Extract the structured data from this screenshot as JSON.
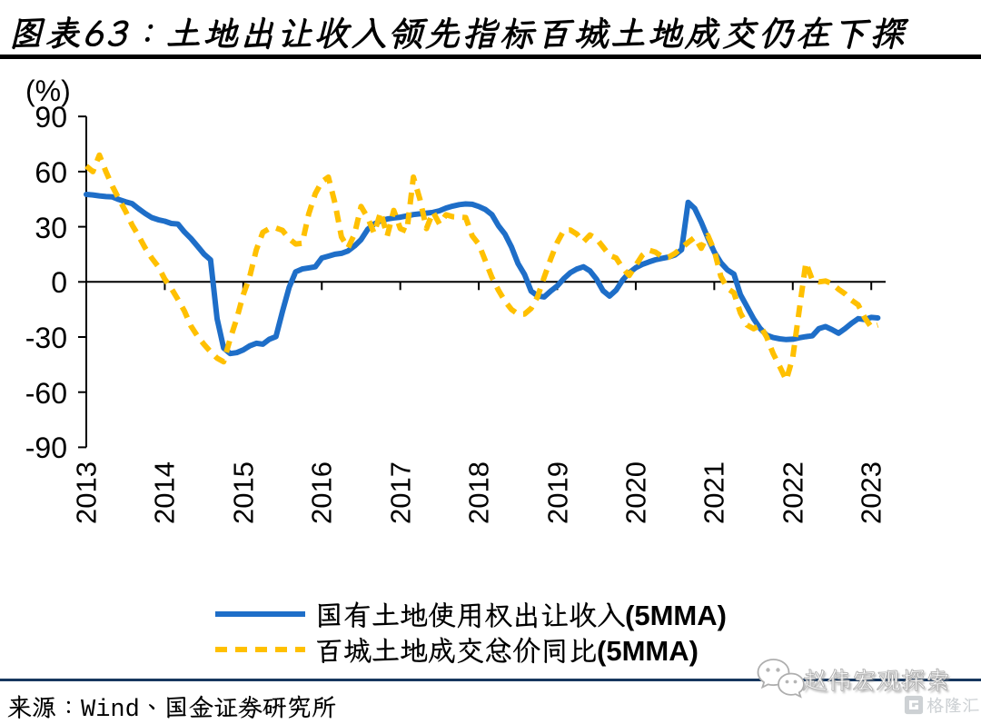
{
  "header": {
    "title": "图表63：土地出让收入领先指标百城土地成交仍在下探"
  },
  "chart_data": {
    "type": "line",
    "title": "土地出让收入领先指标百城土地成交仍在下探",
    "unit_label": "(%)",
    "x_start": "2013-01",
    "x_end": "2023-02",
    "x_frequency": "monthly",
    "xlabel": "",
    "ylabel": "(%)",
    "ylim": [
      -90,
      90
    ],
    "yticks": [
      90,
      60,
      30,
      0,
      -30,
      -60,
      -90
    ],
    "xticks": [
      "2013",
      "2014",
      "2015",
      "2016",
      "2017",
      "2018",
      "2019",
      "2020",
      "2021",
      "2022",
      "2023"
    ],
    "grid": false,
    "legend_position": "bottom-center",
    "series": [
      {
        "name": "国有土地使用权出让收入(5MMA)",
        "color": "#1E6EC8",
        "style": "solid",
        "values": [
          47.6,
          47.3,
          46.8,
          46.4,
          46.2,
          44.8,
          43.6,
          42.6,
          39.8,
          37.2,
          35.0,
          33.8,
          33.0,
          31.8,
          31.5,
          27.2,
          23.6,
          19.4,
          15.1,
          12.0,
          -20.0,
          -36.0,
          -39.0,
          -38.5,
          -37.0,
          -34.8,
          -33.4,
          -33.9,
          -31.2,
          -29.8,
          -16.0,
          -3.0,
          5.5,
          7.0,
          7.6,
          8.2,
          13.0,
          14.0,
          15.0,
          15.5,
          16.8,
          19.5,
          23.0,
          28.5,
          31.5,
          33.2,
          34.2,
          34.8,
          35.2,
          35.9,
          36.6,
          37.0,
          37.4,
          37.8,
          38.7,
          40.2,
          41.2,
          42.0,
          42.4,
          42.2,
          41.0,
          39.4,
          36.6,
          30.6,
          26.0,
          19.0,
          10.0,
          4.0,
          -5.0,
          -7.6,
          -8.2,
          -5.0,
          -2.2,
          1.8,
          5.0,
          7.0,
          8.2,
          6.0,
          1.5,
          -4.8,
          -7.7,
          -4.5,
          1.0,
          5.0,
          7.7,
          9.5,
          10.8,
          12.0,
          12.8,
          13.5,
          14.7,
          17.5,
          43.3,
          40.0,
          32.5,
          24.0,
          16.2,
          10.5,
          6.5,
          4.2,
          -7.0,
          -13.5,
          -20.0,
          -25.3,
          -29.0,
          -30.3,
          -31.0,
          -31.4,
          -31.2,
          -30.4,
          -29.8,
          -29.3,
          -25.4,
          -24.3,
          -26.0,
          -27.9,
          -25.4,
          -22.5,
          -20.0,
          -20.5,
          -19.3,
          -19.6
        ]
      },
      {
        "name": "百城土地成交总价同比(5MMA)",
        "color": "#FFC000",
        "style": "dashed",
        "values": [
          63,
          60,
          69,
          60,
          52,
          45,
          38.5,
          31,
          25,
          18.5,
          13,
          8.3,
          1.5,
          -3.5,
          -9.5,
          -15.8,
          -24,
          -29.5,
          -34,
          -38,
          -41.5,
          -43.5,
          -31,
          -20,
          -7,
          3,
          17.5,
          27,
          29,
          29.3,
          28,
          23.5,
          20.6,
          21,
          37,
          48,
          54.5,
          57,
          43,
          24.5,
          18.5,
          26,
          41,
          35,
          26.5,
          38,
          25,
          38.9,
          29,
          27.5,
          57,
          45,
          29,
          38,
          31.5,
          36.5,
          35.5,
          35.3,
          35,
          25,
          20.5,
          11.5,
          2.5,
          -4.5,
          -10.5,
          -15,
          -17.5,
          -17.5,
          -14.5,
          -8,
          2.5,
          12.5,
          21.5,
          28,
          28.2,
          26,
          21.8,
          25.5,
          23.5,
          19,
          14.5,
          13,
          7.5,
          3.5,
          9,
          14.5,
          17.3,
          16.2,
          13.8,
          13.4,
          15.5,
          18.5,
          21.5,
          24.2,
          18.3,
          25.3,
          17,
          3,
          -3.5,
          -6,
          -17,
          -23.5,
          -25.5,
          -23.7,
          -30,
          -39,
          -46,
          -53.5,
          -41,
          -15,
          10.5,
          1,
          0,
          0.5,
          -1,
          -4,
          -6.5,
          -10,
          -12.5,
          -19.5,
          -24.6,
          -23.5
        ]
      }
    ]
  },
  "legend": {
    "items": [
      {
        "label": "国有土地使用权出让收入(5MMA)",
        "color": "#1E6EC8",
        "style": "solid"
      },
      {
        "label": "百城土地成交总价同比(5MMA)",
        "color": "#FFC000",
        "style": "dashed"
      }
    ]
  },
  "footer": {
    "source": "来源：Wind、国金证券研究所",
    "watermark": "赵伟宏观探索",
    "logo_text": "格隆汇"
  },
  "colors": {
    "line_blue": "#1E6EC8",
    "line_yellow": "#FFC000",
    "axis": "#000000",
    "divider_navy": "#17375E",
    "title_rule": "#000000",
    "logo_grey": "#C9CBCE"
  }
}
